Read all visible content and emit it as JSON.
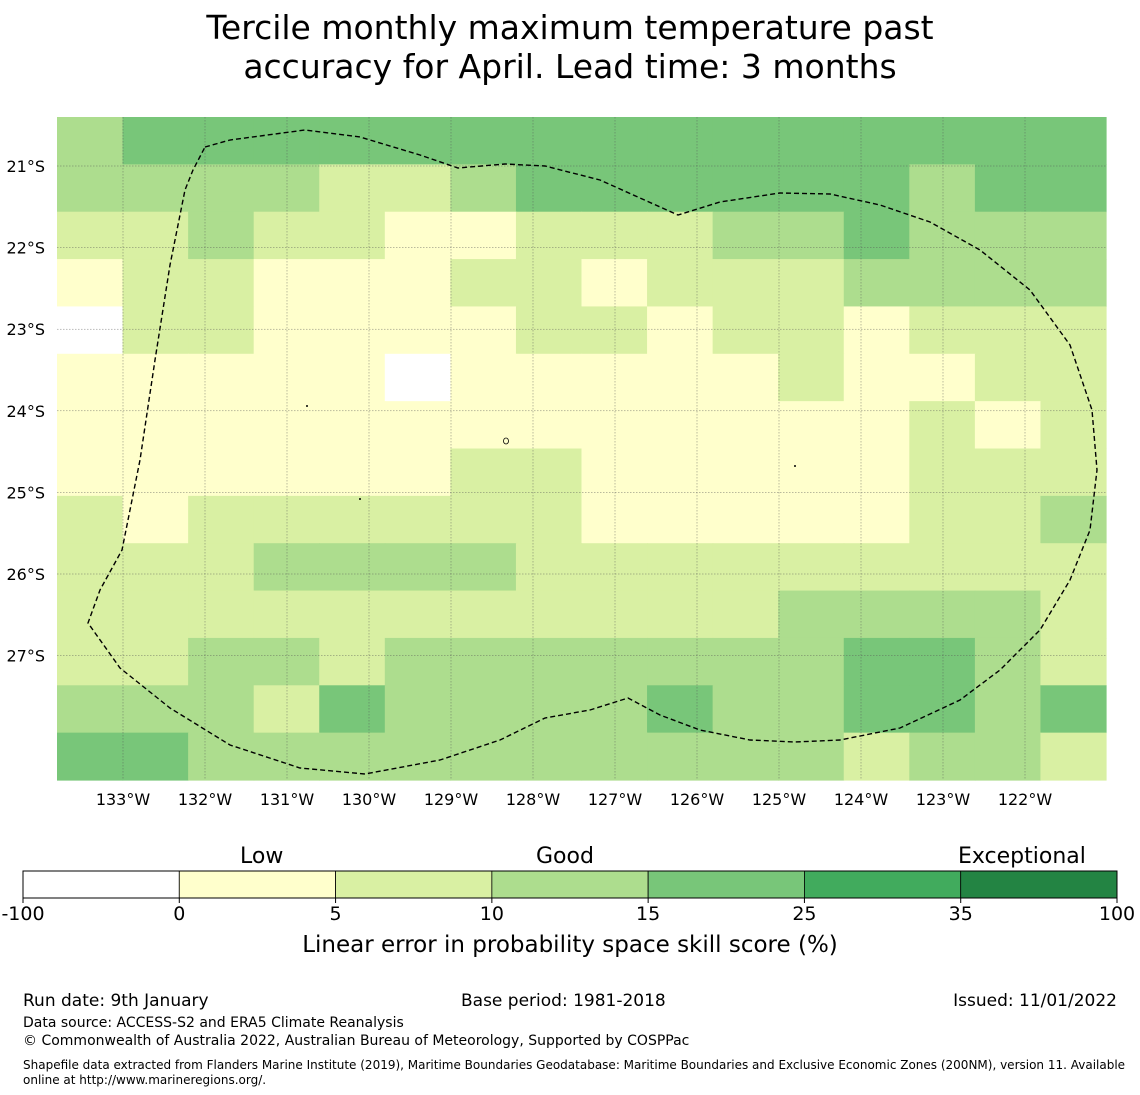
{
  "title": {
    "line1": "Tercile monthly maximum temperature past",
    "line2": "accuracy for April. Lead time: 3 months"
  },
  "map": {
    "lon_labels": [
      "133°W",
      "132°W",
      "131°W",
      "130°W",
      "129°W",
      "128°W",
      "127°W",
      "126°W",
      "125°W",
      "124°W",
      "123°W",
      "122°W"
    ],
    "lat_labels": [
      "21°S",
      "22°S",
      "23°S",
      "24°S",
      "25°S",
      "26°S",
      "27°S"
    ],
    "boundary_style": "dashed black EEZ outline",
    "grid": true,
    "grid_cell_classes": [
      [
        3,
        4,
        4,
        4,
        4,
        4,
        4,
        4,
        4,
        4,
        4,
        4,
        4,
        4,
        4,
        4
      ],
      [
        3,
        3,
        3,
        3,
        2,
        2,
        3,
        4,
        4,
        4,
        4,
        4,
        4,
        3,
        4,
        4
      ],
      [
        2,
        2,
        3,
        2,
        2,
        1,
        1,
        2,
        2,
        2,
        3,
        3,
        4,
        3,
        3,
        3
      ],
      [
        1,
        2,
        2,
        1,
        1,
        1,
        2,
        2,
        1,
        2,
        2,
        2,
        3,
        3,
        3,
        3
      ],
      [
        0,
        2,
        2,
        1,
        1,
        1,
        1,
        2,
        2,
        1,
        2,
        2,
        1,
        2,
        2,
        2
      ],
      [
        1,
        1,
        1,
        1,
        1,
        0,
        1,
        1,
        1,
        1,
        1,
        2,
        1,
        1,
        2,
        2
      ],
      [
        1,
        1,
        1,
        1,
        1,
        1,
        1,
        1,
        1,
        1,
        1,
        1,
        1,
        2,
        1,
        2
      ],
      [
        1,
        1,
        1,
        1,
        1,
        1,
        2,
        2,
        1,
        1,
        1,
        1,
        1,
        2,
        2,
        2
      ],
      [
        2,
        1,
        2,
        2,
        2,
        2,
        2,
        2,
        1,
        1,
        1,
        1,
        1,
        2,
        2,
        3
      ],
      [
        2,
        2,
        2,
        3,
        3,
        3,
        3,
        2,
        2,
        2,
        2,
        2,
        2,
        2,
        2,
        2
      ],
      [
        2,
        2,
        2,
        2,
        2,
        2,
        2,
        2,
        2,
        2,
        2,
        3,
        3,
        3,
        3,
        2
      ],
      [
        2,
        2,
        3,
        3,
        2,
        3,
        3,
        3,
        3,
        3,
        3,
        3,
        4,
        4,
        3,
        2
      ],
      [
        3,
        3,
        3,
        2,
        4,
        3,
        3,
        3,
        3,
        4,
        3,
        3,
        4,
        4,
        3,
        4
      ],
      [
        4,
        4,
        3,
        3,
        3,
        3,
        3,
        3,
        3,
        3,
        3,
        3,
        2,
        3,
        3,
        2
      ]
    ]
  },
  "colorbar": {
    "category_labels": [
      "Low",
      "Good",
      "Exceptional"
    ],
    "tick_labels": [
      "-100",
      "0",
      "5",
      "10",
      "15",
      "25",
      "35",
      "100"
    ],
    "colors": [
      "#ffffff",
      "#ffffcc",
      "#d9f0a3",
      "#addd8e",
      "#78c679",
      "#41ab5d",
      "#238443"
    ],
    "title": "Linear error in probability space skill score (%)"
  },
  "footer": {
    "run_date": "Run date: 9th January",
    "base_period": "Base period: 1981-2018",
    "issued": "Issued: 11/01/2022",
    "data_source": "Data source: ACCESS-S2 and ERA5 Climate Reanalysis",
    "copyright": "© Commonwealth of Australia 2022, Australian Bureau of Meteorology, Supported by COSPPac",
    "shapefile_line1": "Shapefile data extracted from Flanders Marine Institute (2019), Maritime Boundaries Geodatabase: Maritime Boundaries and Exclusive Economic Zones (200NM), version 11. Available",
    "shapefile_line2": "online at http://www.marineregions.org/."
  }
}
